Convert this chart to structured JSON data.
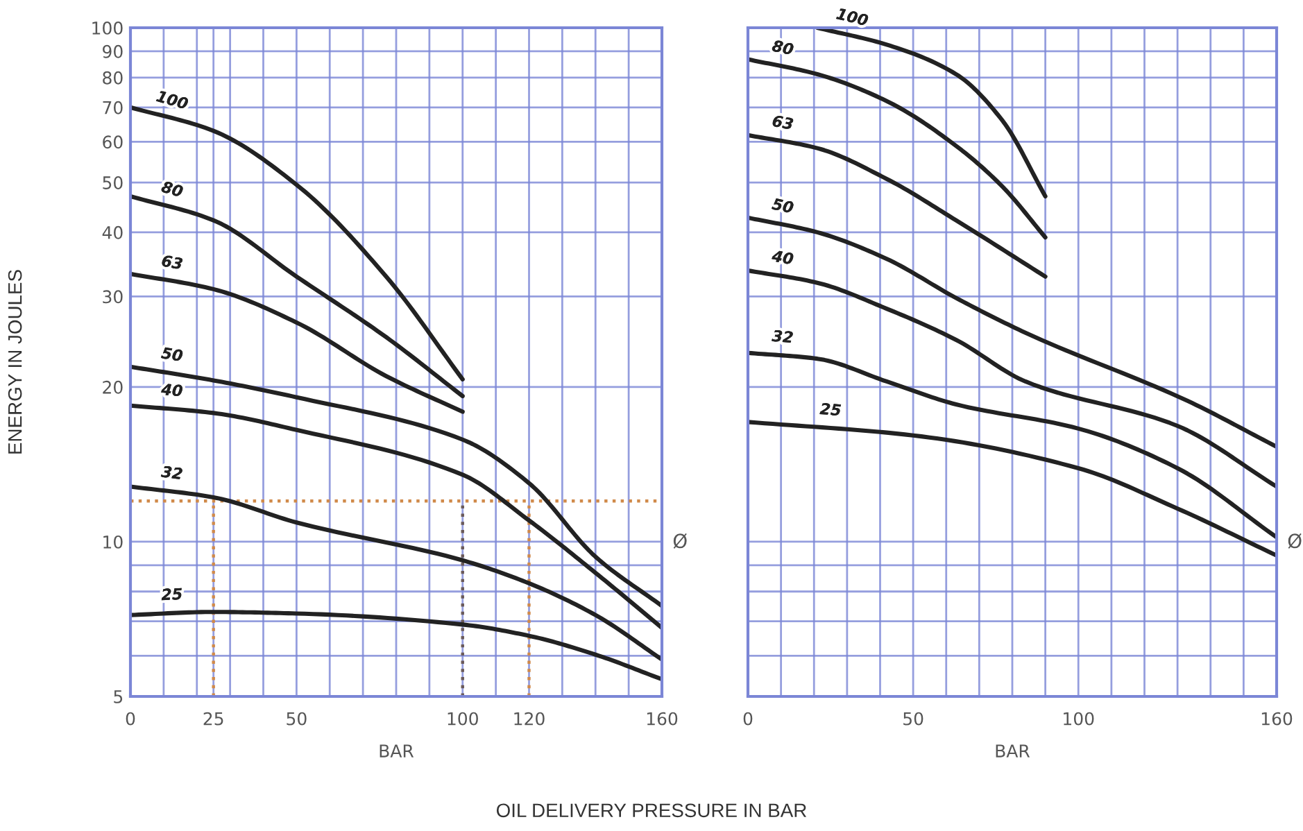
{
  "chart_data": [
    {
      "type": "line",
      "xlabel": "BAR",
      "ylabel": "ENERGY IN JOULES",
      "log": "y",
      "grid": true,
      "legend": false,
      "marker": "none",
      "line_style": "solid",
      "xlim": [
        0,
        160
      ],
      "ylim": [
        5,
        100
      ],
      "xticks": [
        0,
        {
          "value": 10,
          "label": null
        },
        {
          "value": 20,
          "label": null
        },
        25,
        {
          "value": 30,
          "label": null
        },
        {
          "value": 40,
          "label": null
        },
        50,
        {
          "value": 60,
          "label": null
        },
        {
          "value": 70,
          "label": null
        },
        {
          "value": 80,
          "label": null
        },
        {
          "value": 90,
          "label": null
        },
        100,
        {
          "value": 110,
          "label": null
        },
        120,
        {
          "value": 130,
          "label": null
        },
        {
          "value": 140,
          "label": null
        },
        {
          "value": 150,
          "label": null
        },
        160
      ],
      "yticks": [
        5,
        {
          "value": 6,
          "label": null
        },
        {
          "value": 7,
          "label": null
        },
        {
          "value": 8,
          "label": null
        },
        {
          "value": 9,
          "label": null
        },
        10,
        20,
        30,
        40,
        50,
        60,
        70,
        80,
        90,
        100
      ],
      "ref_lines": [
        {
          "axis": "y",
          "value": 12,
          "color": "#d08a4a",
          "line_style": "dotted"
        },
        {
          "axis": "x",
          "value": 25,
          "color": "#d08a4a",
          "line_style": "dotted"
        },
        {
          "axis": "x",
          "value": 100,
          "color": "#6a5a5a",
          "line_style": "dotted"
        },
        {
          "axis": "x",
          "value": 120,
          "color": "#d08a4a",
          "line_style": "dotted"
        }
      ],
      "annotations": [
        "OIL DELIVERY PRESSURE IN BAR",
        "Ø"
      ],
      "series": [
        {
          "name": "100",
          "color": "#222222",
          "x": [
            0,
            25,
            50,
            77,
            100
          ],
          "values": [
            70,
            63,
            49.5,
            32.8,
            20.7
          ]
        },
        {
          "name": "80",
          "color": "#222222",
          "x": [
            0,
            25,
            50,
            77,
            100
          ],
          "values": [
            47,
            42.2,
            32.8,
            25,
            19.2
          ]
        },
        {
          "name": "63",
          "color": "#222222",
          "x": [
            0,
            25,
            50,
            77,
            100
          ],
          "values": [
            33.2,
            31,
            26.7,
            21,
            17.9
          ]
        },
        {
          "name": "50",
          "color": "#222222",
          "x": [
            0,
            25,
            50,
            100,
            120,
            140,
            160
          ],
          "values": [
            21.9,
            20.6,
            19.1,
            15.8,
            13,
            9.35,
            7.5
          ]
        },
        {
          "name": "40",
          "color": "#222222",
          "x": [
            0,
            25,
            50,
            100,
            120,
            140,
            160
          ],
          "values": [
            18.4,
            17.8,
            16.5,
            13.5,
            11,
            8.7,
            6.8
          ]
        },
        {
          "name": "32",
          "color": "#222222",
          "x": [
            0,
            25,
            50,
            100,
            120,
            140,
            160
          ],
          "values": [
            12.8,
            12.2,
            10.9,
            9.2,
            8.3,
            7.2,
            5.9
          ]
        },
        {
          "name": "25",
          "color": "#222222",
          "x": [
            0,
            25,
            50,
            100,
            120,
            140,
            160
          ],
          "values": [
            7.2,
            7.3,
            7.25,
            6.9,
            6.56,
            6.03,
            5.4
          ]
        }
      ]
    },
    {
      "type": "line",
      "xlabel": "BAR",
      "log": "y",
      "grid": true,
      "legend": false,
      "marker": "none",
      "line_style": "solid",
      "tick_labels": "x",
      "xlim": [
        0,
        160
      ],
      "ylim": [
        5,
        100
      ],
      "xticks": [
        0,
        {
          "value": 10,
          "label": null
        },
        {
          "value": 20,
          "label": null
        },
        {
          "value": 30,
          "label": null
        },
        {
          "value": 40,
          "label": null
        },
        50,
        {
          "value": 60,
          "label": null
        },
        {
          "value": 70,
          "label": null
        },
        {
          "value": 80,
          "label": null
        },
        {
          "value": 90,
          "label": null
        },
        100,
        {
          "value": 110,
          "label": null
        },
        {
          "value": 120,
          "label": null
        },
        {
          "value": 130,
          "label": null
        },
        {
          "value": 140,
          "label": null
        },
        {
          "value": 150,
          "label": null
        },
        160
      ],
      "yticks": [
        5,
        {
          "value": 6,
          "label": null
        },
        {
          "value": 7,
          "label": null
        },
        {
          "value": 8,
          "label": null
        },
        {
          "value": 9,
          "label": null
        },
        10,
        20,
        30,
        40,
        50,
        60,
        70,
        80,
        90,
        100
      ],
      "annotations": [
        "Ø"
      ],
      "series": [
        {
          "name": "100",
          "color": "#222222",
          "x": [
            21,
            42,
            63,
            77,
            90
          ],
          "values": [
            100,
            92.7,
            81.2,
            66,
            47
          ]
        },
        {
          "name": "80",
          "color": "#222222",
          "x": [
            0,
            21,
            42,
            63,
            77,
            90
          ],
          "values": [
            86.8,
            81.2,
            72,
            58.9,
            49.1,
            39.1
          ]
        },
        {
          "name": "63",
          "color": "#222222",
          "x": [
            0,
            21,
            42,
            63,
            90
          ],
          "values": [
            61.8,
            58.3,
            50.8,
            42.2,
            32.8
          ]
        },
        {
          "name": "50",
          "color": "#222222",
          "x": [
            0,
            21,
            42,
            63,
            84,
            133,
            160
          ],
          "values": [
            42.7,
            40,
            35.5,
            29.8,
            25.5,
            18.8,
            15.3
          ]
        },
        {
          "name": "40",
          "color": "#222222",
          "x": [
            0,
            21,
            42,
            63,
            84,
            130,
            160
          ],
          "values": [
            33.7,
            31.9,
            28.4,
            24.7,
            20.5,
            16.8,
            12.8
          ]
        },
        {
          "name": "32",
          "color": "#222222",
          "x": [
            0,
            21,
            42,
            63,
            100,
            130,
            160
          ],
          "values": [
            23.3,
            22.7,
            20.5,
            18.5,
            16.6,
            13.9,
            10.2
          ]
        },
        {
          "name": "25",
          "color": "#222222",
          "x": [
            0,
            50,
            100,
            130,
            160
          ],
          "values": [
            17.1,
            16.1,
            13.9,
            11.6,
            9.4
          ]
        }
      ]
    }
  ]
}
